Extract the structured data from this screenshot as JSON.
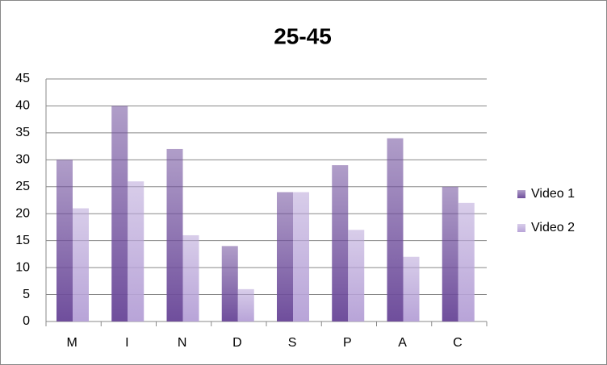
{
  "chart_data": {
    "type": "bar",
    "title": "25-45",
    "categories": [
      "M",
      "I",
      "N",
      "D",
      "S",
      "P",
      "A",
      "C"
    ],
    "series": [
      {
        "name": "Video 1",
        "color": "#6f4e9c",
        "values": [
          30,
          40,
          32,
          14,
          24,
          29,
          34,
          25
        ]
      },
      {
        "name": "Video 2",
        "color": "#b8a4d8",
        "values": [
          21,
          26,
          16,
          6,
          24,
          17,
          12,
          22
        ]
      }
    ],
    "ylim": [
      0,
      45
    ],
    "yticks": [
      0,
      5,
      10,
      15,
      20,
      25,
      30,
      35,
      40,
      45
    ],
    "grid": true,
    "legend": "right"
  }
}
